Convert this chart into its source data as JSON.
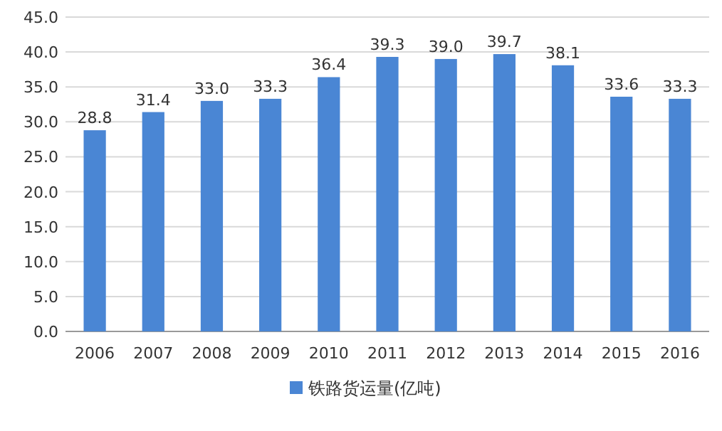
{
  "chart_data": {
    "type": "bar",
    "categories": [
      "2006",
      "2007",
      "2008",
      "2009",
      "2010",
      "2011",
      "2012",
      "2013",
      "2014",
      "2015",
      "2016"
    ],
    "series": [
      {
        "name": "铁路货运量(亿吨)",
        "color": "#4a86d4",
        "values": [
          28.8,
          31.4,
          33.0,
          33.3,
          36.4,
          39.3,
          39.0,
          39.7,
          38.1,
          33.6,
          33.3
        ],
        "value_labels": [
          "28.8",
          "31.4",
          "33.0",
          "33.3",
          "36.4",
          "39.3",
          "39.0",
          "39.7",
          "38.1",
          "33.6",
          "33.3"
        ]
      }
    ],
    "ylim": [
      0,
      45
    ],
    "yticks": [
      {
        "value": 0,
        "label": "0.0"
      },
      {
        "value": 5,
        "label": "5.0"
      },
      {
        "value": 10,
        "label": "10.0"
      },
      {
        "value": 15,
        "label": "15.0"
      },
      {
        "value": 20,
        "label": "20.0"
      },
      {
        "value": 25,
        "label": "25.0"
      },
      {
        "value": 30,
        "label": "30.0"
      },
      {
        "value": 35,
        "label": "35.0"
      },
      {
        "value": 40,
        "label": "40.0"
      },
      {
        "value": 45,
        "label": "45.0"
      }
    ],
    "grid": "y",
    "legend": "bottom"
  }
}
